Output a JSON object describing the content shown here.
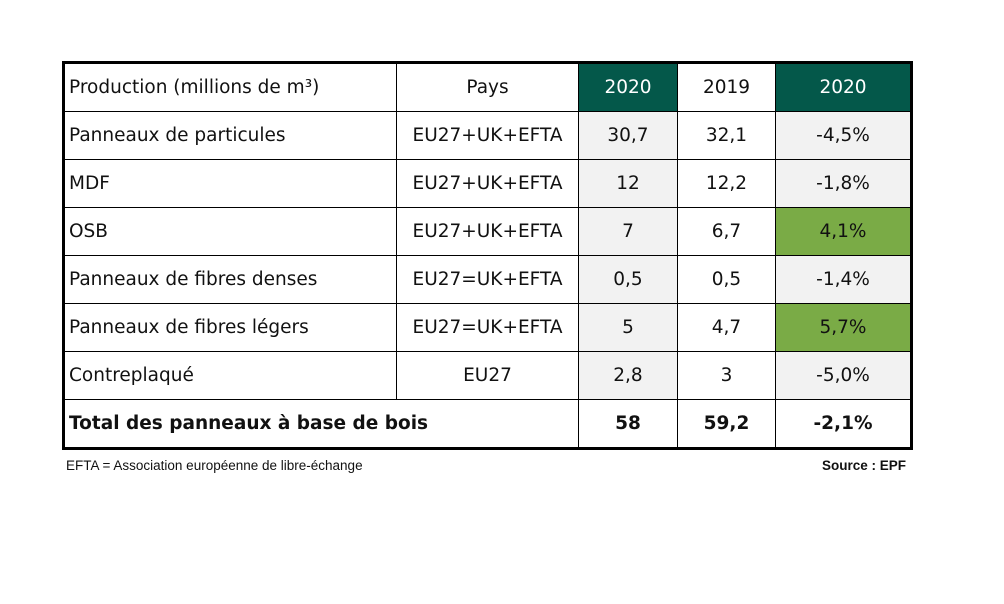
{
  "table": {
    "headers": [
      "Production (millions de m³)",
      "Pays",
      "2020",
      "2019",
      "2020"
    ],
    "rows": [
      {
        "product": "Panneaux de particules",
        "country": "EU27+UK+EFTA",
        "v2020": "30,7",
        "v2019": "32,1",
        "change": "-4,5%"
      },
      {
        "product": "MDF",
        "country": "EU27+UK+EFTA",
        "v2020": "12",
        "v2019": "12,2",
        "change": "-1,8%"
      },
      {
        "product": "OSB",
        "country": "EU27+UK+EFTA",
        "v2020": "7",
        "v2019": "6,7",
        "change": "4,1%"
      },
      {
        "product": "Panneaux de fibres denses",
        "country": "EU27=UK+EFTA",
        "v2020": "0,5",
        "v2019": "0,5",
        "change": "-1,4%"
      },
      {
        "product": "Panneaux de fibres légers",
        "country": "EU27=UK+EFTA",
        "v2020": "5",
        "v2019": "4,7",
        "change": "5,7%"
      },
      {
        "product": "Contreplaqué",
        "country": "EU27",
        "v2020": "2,8",
        "v2019": "3",
        "change": "-5,0%"
      }
    ],
    "total": {
      "label": "Total des panneaux à base de bois",
      "v2020": "58",
      "v2019": "59,2",
      "change": "-2,1%"
    }
  },
  "footer": {
    "note": "EFTA = Association européenne de libre-échange",
    "source": "Source : EPF"
  },
  "colors": {
    "header_dark": "#04584a",
    "positive_green": "#7aab46",
    "shade_gray": "#f2f2f2"
  }
}
